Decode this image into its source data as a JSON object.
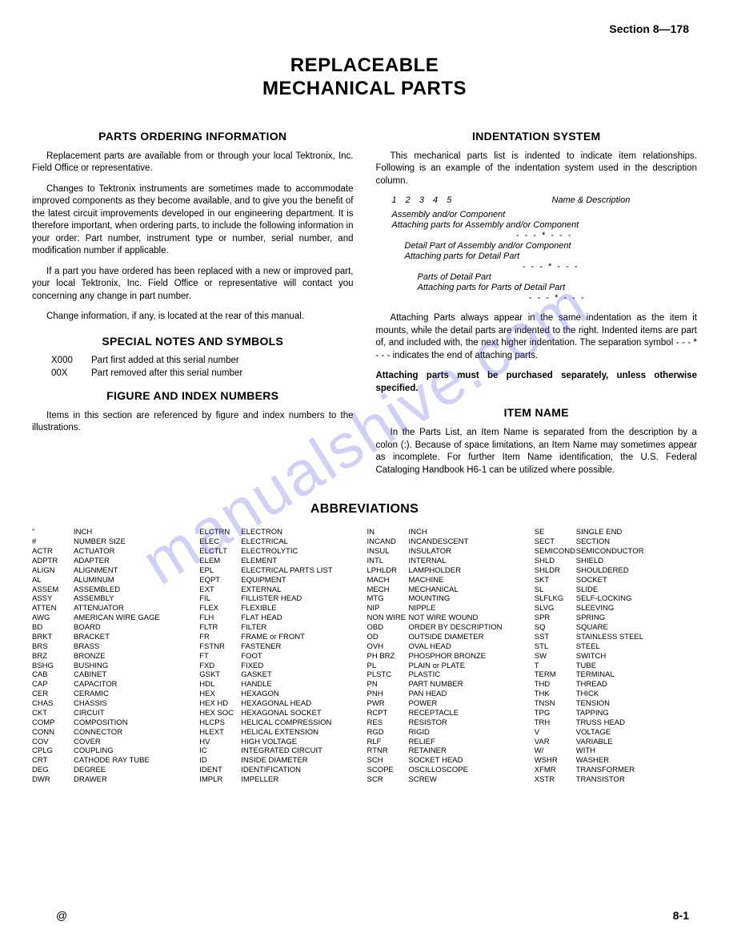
{
  "header": {
    "section": "Section 8—178"
  },
  "title": {
    "line1": "REPLACEABLE",
    "line2": "MECHANICAL PARTS"
  },
  "left": {
    "h_order": "PARTS ORDERING INFORMATION",
    "p1": "Replacement parts are available from or through your local Tektronix, Inc. Field Office or representative.",
    "p2": "Changes to Tektronix instruments are sometimes made to accommodate improved components as they become available, and to give you the benefit of the latest circuit improvements developed in our engineering department. It is therefore important, when ordering parts, to include the following information in your order: Part number, instrument type or number, serial number, and modification number if applicable.",
    "p3": "If a part you have ordered has been replaced with a new or improved part, your local Tektronix, Inc. Field Office or representative will contact you concerning any change in part number.",
    "p4": "Change information, if any, is located at the rear of this manual.",
    "h_special": "SPECIAL NOTES AND SYMBOLS",
    "special": [
      {
        "k": "X000",
        "v": "Part first added at this serial number"
      },
      {
        "k": "00X",
        "v": "Part removed after this serial number"
      }
    ],
    "h_fig": "FIGURE AND INDEX NUMBERS",
    "p_fig": "Items in this section are referenced by figure and index numbers to the illustrations."
  },
  "right": {
    "h_indent": "INDENTATION SYSTEM",
    "p1": "This mechanical parts list is indented to indicate item relationships. Following is an example of the indentation system used in the description column.",
    "ex": {
      "nums": "1 2 3 4 5",
      "namedesc": "Name & Description",
      "l1": "Assembly and/or Component",
      "l2": "Attaching parts for Assembly and/or Component",
      "dots": "- - - * - - -",
      "l3": "Detail Part of Assembly and/or Component",
      "l4": "Attaching parts for Detail Part",
      "l5": "Parts of Detail Part",
      "l6": "Attaching parts for Parts of Detail Part"
    },
    "p2": "Attaching Parts always appear in the same indentation as the item it mounts, while the detail parts are indented to the right. Indented items are part of, and included with, the next higher indentation. The separation symbol - - - * - - - indicates the end of attaching parts.",
    "p3": "Attaching parts must be purchased separately, unless otherwise specified.",
    "h_item": "ITEM NAME",
    "p_item": "In the Parts List, an Item Name is separated from the description by a colon (:). Because of space limitations, an Item Name may sometimes appear as incomplete. For further Item Name identification, the U.S. Federal Cataloging Handbook H6-1 can be utilized where possible."
  },
  "abbrev_title": "ABBREVIATIONS",
  "abbrev_cols": [
    [
      [
        "\"",
        "INCH"
      ],
      [
        "#",
        "NUMBER SIZE"
      ],
      [
        "ACTR",
        "ACTUATOR"
      ],
      [
        "ADPTR",
        "ADAPTER"
      ],
      [
        "ALIGN",
        "ALIGNMENT"
      ],
      [
        "AL",
        "ALUMINUM"
      ],
      [
        "ASSEM",
        "ASSEMBLED"
      ],
      [
        "ASSY",
        "ASSEMBLY"
      ],
      [
        "ATTEN",
        "ATTENUATOR"
      ],
      [
        "AWG",
        "AMERICAN WIRE GAGE"
      ],
      [
        "BD",
        "BOARD"
      ],
      [
        "BRKT",
        "BRACKET"
      ],
      [
        "BRS",
        "BRASS"
      ],
      [
        "BRZ",
        "BRONZE"
      ],
      [
        "BSHG",
        "BUSHING"
      ],
      [
        "CAB",
        "CABINET"
      ],
      [
        "CAP",
        "CAPACITOR"
      ],
      [
        "CER",
        "CERAMIC"
      ],
      [
        "CHAS",
        "CHASSIS"
      ],
      [
        "CKT",
        "CIRCUIT"
      ],
      [
        "COMP",
        "COMPOSITION"
      ],
      [
        "CONN",
        "CONNECTOR"
      ],
      [
        "COV",
        "COVER"
      ],
      [
        "CPLG",
        "COUPLING"
      ],
      [
        "CRT",
        "CATHODE RAY TUBE"
      ],
      [
        "DEG",
        "DEGREE"
      ],
      [
        "DWR",
        "DRAWER"
      ]
    ],
    [
      [
        "ELCTRN",
        "ELECTRON"
      ],
      [
        "ELEC",
        "ELECTRICAL"
      ],
      [
        "ELCTLT",
        "ELECTROLYTIC"
      ],
      [
        "ELEM",
        "ELEMENT"
      ],
      [
        "EPL",
        "ELECTRICAL PARTS LIST"
      ],
      [
        "EQPT",
        "EQUIPMENT"
      ],
      [
        "EXT",
        "EXTERNAL"
      ],
      [
        "FIL",
        "FILLISTER HEAD"
      ],
      [
        "FLEX",
        "FLEXIBLE"
      ],
      [
        "FLH",
        "FLAT HEAD"
      ],
      [
        "FLTR",
        "FILTER"
      ],
      [
        "FR",
        "FRAME or FRONT"
      ],
      [
        "FSTNR",
        "FASTENER"
      ],
      [
        "FT",
        "FOOT"
      ],
      [
        "FXD",
        "FIXED"
      ],
      [
        "GSKT",
        "GASKET"
      ],
      [
        "HDL",
        "HANDLE"
      ],
      [
        "HEX",
        "HEXAGON"
      ],
      [
        "HEX HD",
        "HEXAGONAL HEAD"
      ],
      [
        "HEX SOC",
        "HEXAGONAL SOCKET"
      ],
      [
        "HLCPS",
        "HELICAL COMPRESSION"
      ],
      [
        "HLEXT",
        "HELICAL EXTENSION"
      ],
      [
        "HV",
        "HIGH VOLTAGE"
      ],
      [
        "IC",
        "INTEGRATED CIRCUIT"
      ],
      [
        "ID",
        "INSIDE DIAMETER"
      ],
      [
        "IDENT",
        "IDENTIFICATION"
      ],
      [
        "IMPLR",
        "IMPELLER"
      ]
    ],
    [
      [
        "IN",
        "INCH"
      ],
      [
        "INCAND",
        "INCANDESCENT"
      ],
      [
        "INSUL",
        "INSULATOR"
      ],
      [
        "INTL",
        "INTERNAL"
      ],
      [
        "LPHLDR",
        "LAMPHOLDER"
      ],
      [
        "MACH",
        "MACHINE"
      ],
      [
        "MECH",
        "MECHANICAL"
      ],
      [
        "MTG",
        "MOUNTING"
      ],
      [
        "NIP",
        "NIPPLE"
      ],
      [
        "NON WIRE",
        "NOT WIRE WOUND"
      ],
      [
        "OBD",
        "ORDER BY DESCRIPTION"
      ],
      [
        "OD",
        "OUTSIDE DIAMETER"
      ],
      [
        "OVH",
        "OVAL HEAD"
      ],
      [
        "PH BRZ",
        "PHOSPHOR BRONZE"
      ],
      [
        "PL",
        "PLAIN or PLATE"
      ],
      [
        "PLSTC",
        "PLASTIC"
      ],
      [
        "PN",
        "PART NUMBER"
      ],
      [
        "PNH",
        "PAN HEAD"
      ],
      [
        "PWR",
        "POWER"
      ],
      [
        "RCPT",
        "RECEPTACLE"
      ],
      [
        "RES",
        "RESISTOR"
      ],
      [
        "RGD",
        "RIGID"
      ],
      [
        "RLF",
        "RELIEF"
      ],
      [
        "RTNR",
        "RETAINER"
      ],
      [
        "SCH",
        "SOCKET HEAD"
      ],
      [
        "SCOPE",
        "OSCILLOSCOPE"
      ],
      [
        "SCR",
        "SCREW"
      ]
    ],
    [
      [
        "SE",
        "SINGLE END"
      ],
      [
        "SECT",
        "SECTION"
      ],
      [
        "SEMICOND",
        "SEMICONDUCTOR"
      ],
      [
        "SHLD",
        "SHIELD"
      ],
      [
        "SHLDR",
        "SHOULDERED"
      ],
      [
        "SKT",
        "SOCKET"
      ],
      [
        "SL",
        "SLIDE"
      ],
      [
        "SLFLKG",
        "SELF-LOCKING"
      ],
      [
        "SLVG",
        "SLEEVING"
      ],
      [
        "SPR",
        "SPRING"
      ],
      [
        "SQ",
        "SQUARE"
      ],
      [
        "SST",
        "STAINLESS STEEL"
      ],
      [
        "STL",
        "STEEL"
      ],
      [
        "SW",
        "SWITCH"
      ],
      [
        "T",
        "TUBE"
      ],
      [
        "TERM",
        "TERMINAL"
      ],
      [
        "THD",
        "THREAD"
      ],
      [
        "THK",
        "THICK"
      ],
      [
        "TNSN",
        "TENSION"
      ],
      [
        "TPG",
        "TAPPING"
      ],
      [
        "TRH",
        "TRUSS HEAD"
      ],
      [
        "V",
        "VOLTAGE"
      ],
      [
        "VAR",
        "VARIABLE"
      ],
      [
        "W/",
        "WITH"
      ],
      [
        "WSHR",
        "WASHER"
      ],
      [
        "XFMR",
        "TRANSFORMER"
      ],
      [
        "XSTR",
        "TRANSISTOR"
      ]
    ]
  ],
  "footer": {
    "at": "@",
    "page": "8-1"
  },
  "watermark": "manualshive.com"
}
